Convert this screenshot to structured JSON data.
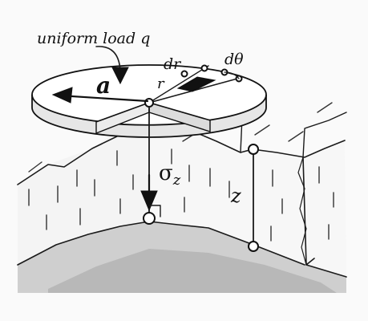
{
  "figure": {
    "labels": {
      "load": "uniform load q",
      "radius_a": "a",
      "radius_r": "r",
      "dr": "dr",
      "dtheta": "dθ",
      "sigma_main": "σ",
      "sigma_sub": "z",
      "depth": "z"
    },
    "colors": {
      "ink": "#111111",
      "background": "#ffffff",
      "ground_shade": "#c8c8c8",
      "ground_shade_light": "#dcdcdc",
      "paper_grey": "#eeeeee"
    }
  }
}
